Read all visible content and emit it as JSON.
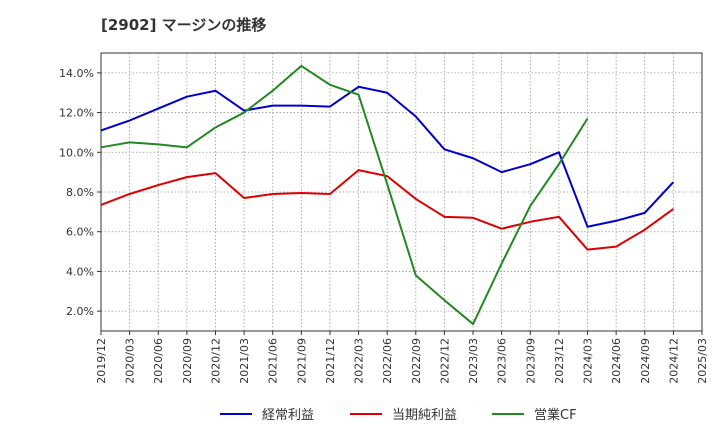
{
  "chart_data": {
    "type": "line",
    "title": "[2902]  マージンの推移",
    "x": [
      "2019/12",
      "2020/03",
      "2020/06",
      "2020/09",
      "2020/12",
      "2021/03",
      "2021/06",
      "2021/09",
      "2021/12",
      "2022/03",
      "2022/06",
      "2022/09",
      "2022/12",
      "2023/03",
      "2023/06",
      "2023/09",
      "2023/12",
      "2024/03",
      "2024/06",
      "2024/09",
      "2024/12",
      "2025/03"
    ],
    "yticks": [
      "2.0%",
      "4.0%",
      "6.0%",
      "8.0%",
      "10.0%",
      "12.0%",
      "14.0%"
    ],
    "ylim": [
      1.0,
      15.0
    ],
    "ytick_values": [
      2,
      4,
      6,
      8,
      10,
      12,
      14
    ],
    "grid": true,
    "legend_position": "bottom",
    "series": [
      {
        "name": "経常利益",
        "color": "#0000cc",
        "values": [
          11.1,
          11.6,
          12.2,
          12.8,
          13.1,
          12.1,
          12.35,
          12.35,
          12.3,
          13.3,
          13.0,
          11.8,
          10.15,
          9.7,
          9.0,
          9.4,
          10.0,
          6.25,
          6.55,
          6.95,
          8.5,
          null
        ]
      },
      {
        "name": "当期純利益",
        "color": "#dd0000",
        "values": [
          7.35,
          7.9,
          8.35,
          8.75,
          8.95,
          7.7,
          7.9,
          7.95,
          7.9,
          9.1,
          8.8,
          7.65,
          6.75,
          6.7,
          6.15,
          6.5,
          6.75,
          5.1,
          5.25,
          6.1,
          7.15,
          null
        ]
      },
      {
        "name": "営業CF",
        "color": "#228822",
        "values": [
          10.25,
          10.5,
          10.4,
          10.25,
          11.25,
          12.0,
          13.1,
          14.35,
          13.4,
          12.9,
          8.4,
          3.8,
          2.55,
          1.35,
          4.4,
          7.3,
          9.4,
          11.7,
          null,
          null,
          null,
          null
        ]
      }
    ]
  }
}
